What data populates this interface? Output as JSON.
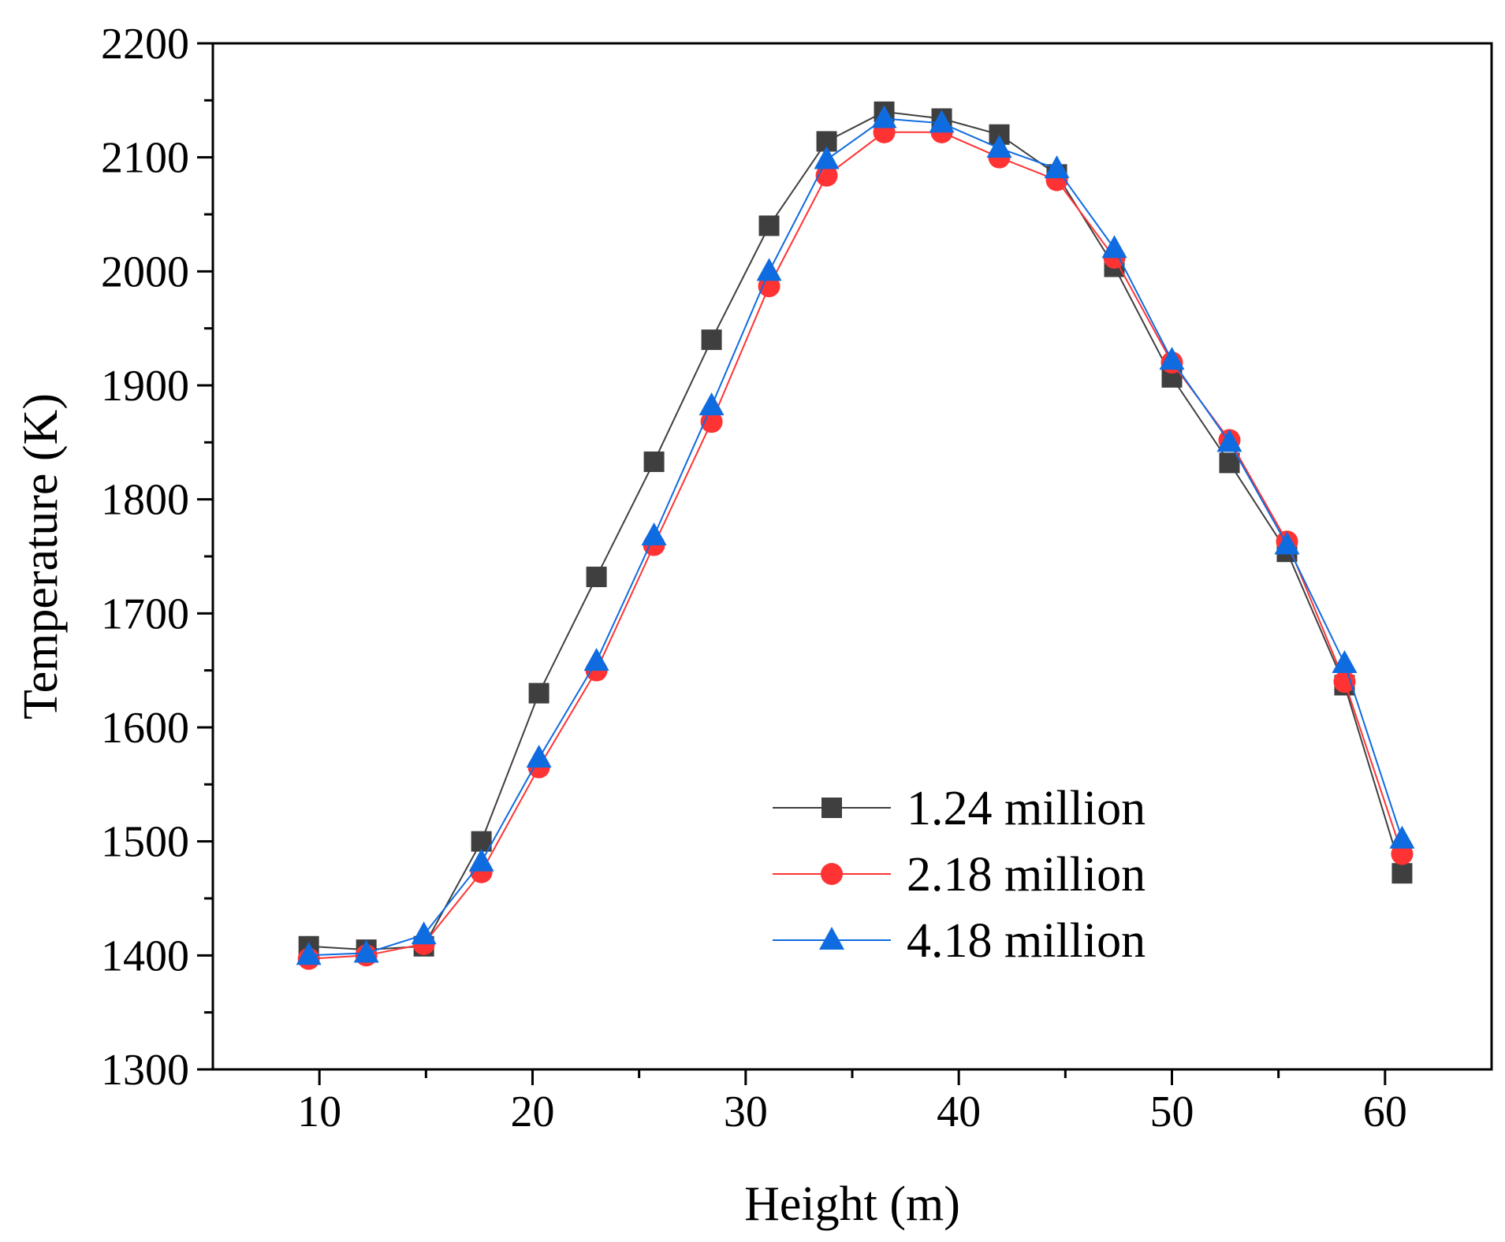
{
  "chart_data": {
    "type": "line",
    "title": "",
    "xlabel": "Height (m)",
    "ylabel": "Temperature (K)",
    "xlim": [
      5,
      65
    ],
    "ylim": [
      1300,
      2200
    ],
    "xticks": [
      10,
      20,
      30,
      40,
      50,
      60
    ],
    "yticks": [
      1300,
      1400,
      1500,
      1600,
      1700,
      1800,
      1900,
      2000,
      2100,
      2200
    ],
    "grid": false,
    "legend_position": "lower-right",
    "x": [
      9.5,
      12.2,
      14.9,
      17.6,
      20.3,
      23.0,
      25.7,
      28.4,
      31.1,
      33.8,
      36.5,
      39.2,
      41.9,
      44.6,
      47.3,
      50.0,
      52.7,
      55.4,
      58.1,
      60.8
    ],
    "series": [
      {
        "name": "1.24 million",
        "color": "#3f3f3f",
        "marker": "square",
        "values": [
          1408,
          1405,
          1408,
          1500,
          1630,
          1732,
          1833,
          1940,
          2040,
          2114,
          2140,
          2134,
          2120,
          2085,
          2004,
          1907,
          1832,
          1754,
          1637,
          1472
        ]
      },
      {
        "name": "2.18 million",
        "color": "#ff3333",
        "marker": "circle",
        "values": [
          1397,
          1400,
          1410,
          1473,
          1565,
          1650,
          1760,
          1868,
          1987,
          2084,
          2122,
          2122,
          2100,
          2080,
          2012,
          1920,
          1852,
          1763,
          1640,
          1489
        ]
      },
      {
        "name": "4.18 million",
        "color": "#0f6be0",
        "marker": "triangle",
        "values": [
          1400,
          1402,
          1418,
          1482,
          1573,
          1658,
          1768,
          1882,
          2000,
          2098,
          2134,
          2130,
          2108,
          2090,
          2020,
          1922,
          1850,
          1760,
          1656,
          1502
        ]
      }
    ]
  }
}
